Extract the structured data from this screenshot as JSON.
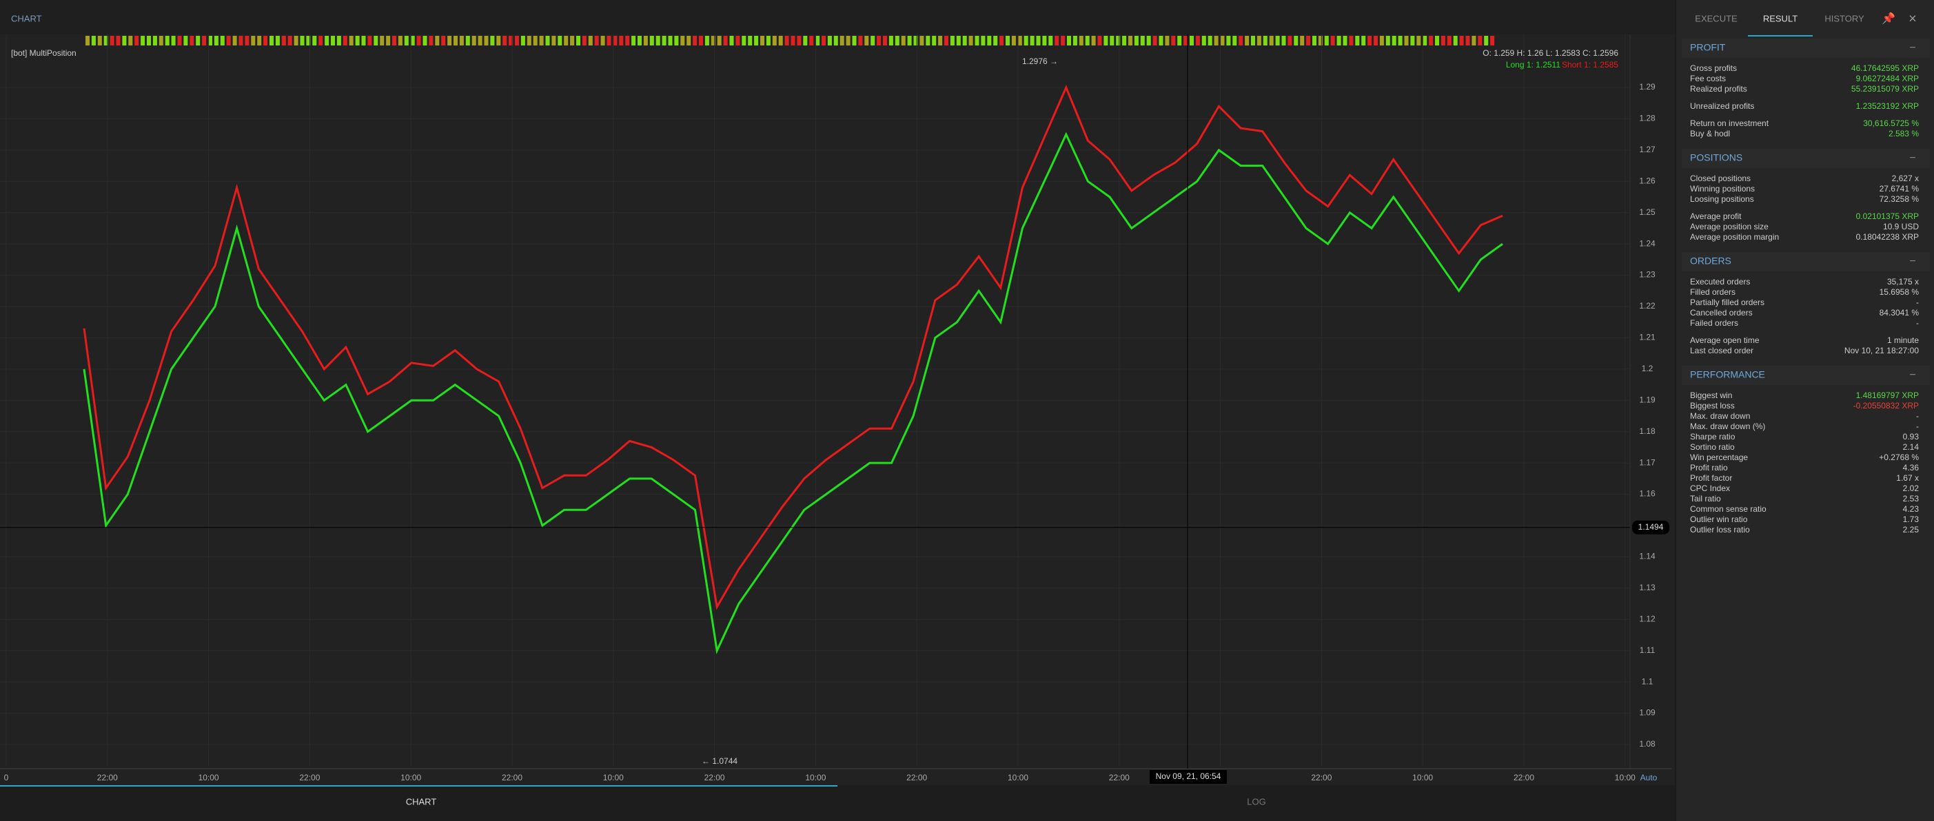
{
  "header": {
    "title": "CHART"
  },
  "chart": {
    "type": "line",
    "bot": "[bot] MultiPosition",
    "ohlc": "O: 1.259 H: 1.26 L: 1.2583 C: 1.2596",
    "long_label": "Long 1: 1.2511",
    "short_label": "Short 1: 1.2585",
    "max_label": "1.2976 →",
    "min_label": "← 1.0744",
    "cross_price": "1.1494",
    "cross_time": "Nov 09, 21, 06:54",
    "auto": "Auto",
    "ylim": [
      1.0732,
      1.2986
    ],
    "yticks": [
      1.08,
      1.09,
      1.1,
      1.11,
      1.12,
      1.13,
      1.14,
      1.15,
      1.16,
      1.17,
      1.18,
      1.19,
      1.2,
      1.21,
      1.22,
      1.23,
      1.24,
      1.25,
      1.26,
      1.27,
      1.28,
      1.29
    ],
    "xticks": [
      "0",
      "22:00",
      "10:00",
      "22:00",
      "10:00",
      "22:00",
      "10:00",
      "22:00",
      "10:00",
      "22:00",
      "10:00",
      "22:00",
      "",
      "22:00",
      "10:00",
      "22:00",
      "10:00"
    ],
    "series": [
      {
        "name": "Long",
        "color": "#22e01e",
        "values": [
          1.2,
          1.15,
          1.16,
          1.18,
          1.2,
          1.21,
          1.22,
          1.245,
          1.22,
          1.21,
          1.2,
          1.19,
          1.195,
          1.18,
          1.185,
          1.19,
          1.19,
          1.195,
          1.19,
          1.185,
          1.17,
          1.15,
          1.155,
          1.155,
          1.16,
          1.165,
          1.165,
          1.16,
          1.155,
          1.11,
          1.125,
          1.135,
          1.145,
          1.155,
          1.16,
          1.165,
          1.17,
          1.17,
          1.185,
          1.21,
          1.215,
          1.225,
          1.215,
          1.245,
          1.26,
          1.275,
          1.26,
          1.255,
          1.245,
          1.25,
          1.255,
          1.26,
          1.27,
          1.265,
          1.265,
          1.255,
          1.245,
          1.24,
          1.25,
          1.245,
          1.255,
          1.245,
          1.235,
          1.225,
          1.235,
          1.24
        ]
      },
      {
        "name": "Short",
        "color": "#e81c1c",
        "values": [
          1.213,
          1.162,
          1.172,
          1.19,
          1.212,
          1.222,
          1.233,
          1.258,
          1.232,
          1.222,
          1.212,
          1.2,
          1.207,
          1.192,
          1.196,
          1.202,
          1.201,
          1.206,
          1.2,
          1.196,
          1.181,
          1.162,
          1.166,
          1.166,
          1.171,
          1.177,
          1.175,
          1.171,
          1.166,
          1.124,
          1.136,
          1.146,
          1.156,
          1.165,
          1.171,
          1.176,
          1.181,
          1.181,
          1.196,
          1.222,
          1.227,
          1.236,
          1.226,
          1.258,
          1.274,
          1.29,
          1.273,
          1.267,
          1.257,
          1.262,
          1.266,
          1.272,
          1.284,
          1.277,
          1.276,
          1.266,
          1.257,
          1.252,
          1.262,
          1.256,
          1.267,
          1.257,
          1.247,
          1.237,
          1.246,
          1.249
        ]
      }
    ]
  },
  "tabs": {
    "bottom": [
      "CHART",
      "LOG"
    ],
    "side": [
      "EXECUTE",
      "RESULT",
      "HISTORY"
    ]
  },
  "sections": [
    {
      "title": "PROFIT",
      "groups": [
        [
          [
            "Gross profits",
            "46.17642595 XRP",
            "#5ad84a"
          ],
          [
            "Fee costs",
            "9.06272484 XRP",
            "#5ad84a"
          ],
          [
            "Realized profits",
            "55.23915079 XRP",
            "#5ad84a"
          ]
        ],
        [
          [
            "Unrealized profits",
            "1.23523192 XRP",
            "#5ad84a"
          ]
        ],
        [
          [
            "Return on investment",
            "30,616.5725 %",
            "#5ad84a"
          ],
          [
            "Buy & hodl",
            "2.583 %",
            "#5ad84a"
          ]
        ]
      ]
    },
    {
      "title": "POSITIONS",
      "groups": [
        [
          [
            "Closed positions",
            "2,627 x",
            "#cccccc"
          ],
          [
            "Winning positions",
            "27.6741 %",
            "#cccccc"
          ],
          [
            "Loosing positions",
            "72.3258 %",
            "#cccccc"
          ]
        ],
        [
          [
            "Average profit",
            "0.02101375 XRP",
            "#5ad84a"
          ],
          [
            "Average position size",
            "10.9 USD",
            "#cccccc"
          ],
          [
            "Average position margin",
            "0.18042238 XRP",
            "#cccccc"
          ]
        ]
      ]
    },
    {
      "title": "ORDERS",
      "groups": [
        [
          [
            "Executed orders",
            "35,175 x",
            "#cccccc"
          ],
          [
            "Filled orders",
            "15.6958 %",
            "#cccccc"
          ],
          [
            "Partially filled orders",
            "-",
            "#cccccc"
          ],
          [
            "Cancelled orders",
            "84.3041 %",
            "#cccccc"
          ],
          [
            "Failed orders",
            "-",
            "#cccccc"
          ]
        ],
        [
          [
            "Average open time",
            "1 minute",
            "#cccccc"
          ],
          [
            "Last closed order",
            "Nov 10, 21   18:27:00",
            "#cccccc"
          ]
        ]
      ]
    },
    {
      "title": "PERFORMANCE",
      "groups": [
        [
          [
            "Biggest win",
            "1.48169797 XRP",
            "#5ad84a"
          ],
          [
            "Biggest loss",
            "-0.20550832 XRP",
            "#e8413a"
          ],
          [
            "Max. draw down",
            "-",
            "#cccccc"
          ],
          [
            "Max. draw down (%)",
            "-",
            "#cccccc"
          ],
          [
            "Sharpe ratio",
            "0.93",
            "#cccccc"
          ],
          [
            "Sortino ratio",
            "2.14",
            "#cccccc"
          ],
          [
            "Win percentage",
            "+0.2768 %",
            "#cccccc"
          ],
          [
            "Profit ratio",
            "4.36",
            "#cccccc"
          ],
          [
            "Profit factor",
            "1.67 x",
            "#cccccc"
          ],
          [
            "CPC Index",
            "2.02",
            "#cccccc"
          ],
          [
            "Tail ratio",
            "2.53",
            "#cccccc"
          ],
          [
            "Common sense ratio",
            "4.23",
            "#cccccc"
          ],
          [
            "Outlier win ratio",
            "1.73",
            "#cccccc"
          ],
          [
            "Outlier loss ratio",
            "2.25",
            "#cccccc"
          ]
        ]
      ]
    }
  ]
}
